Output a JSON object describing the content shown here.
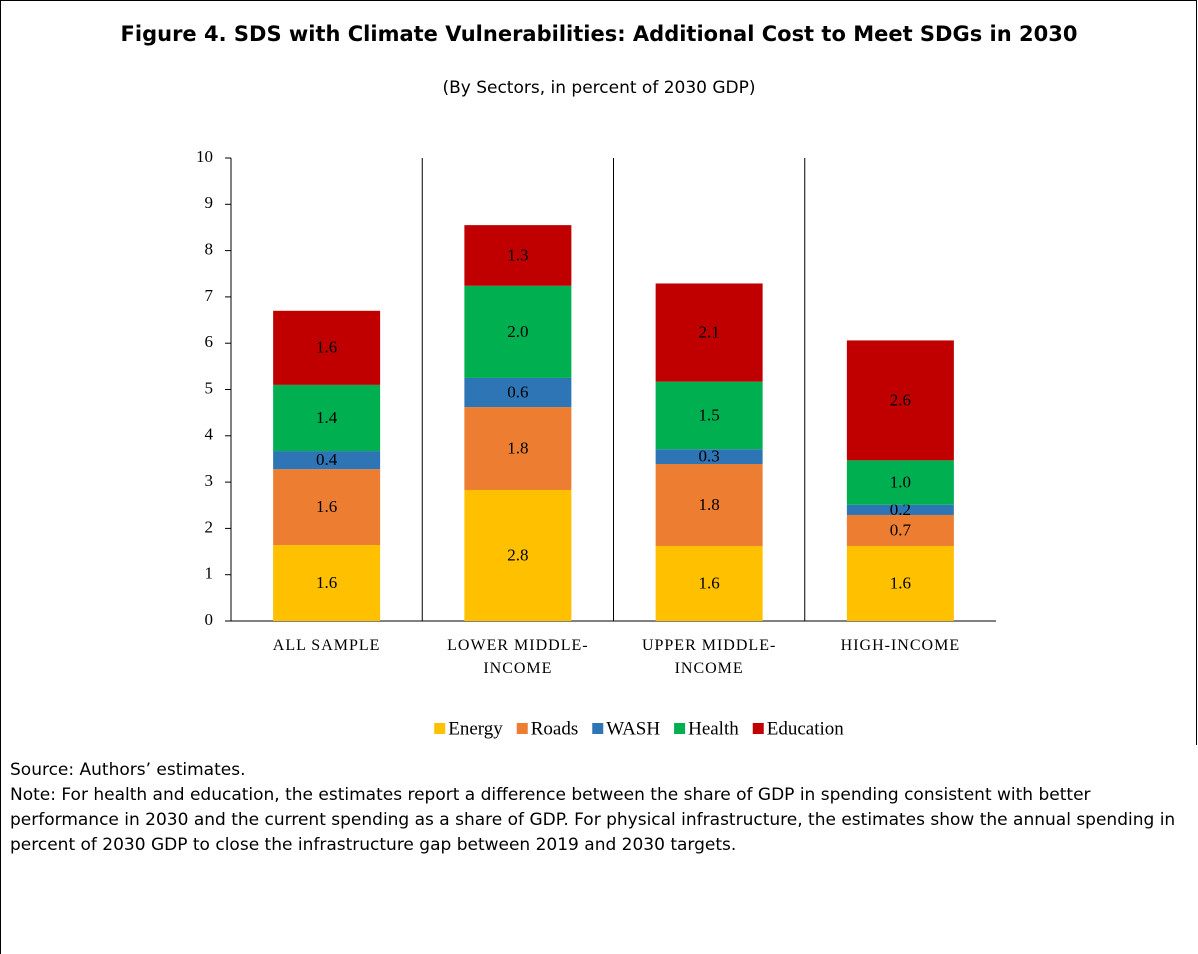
{
  "chart_data": {
    "type": "stacked_bar",
    "title": "Figure 4. SDS with Climate Vulnerabilities: Additional Cost to Meet SDGs in 2030",
    "subtitle": "(By Sectors, in percent of 2030 GDP)",
    "categories": [
      "ALL SAMPLE",
      "LOWER MIDDLE-INCOME",
      "UPPER MIDDLE-INCOME",
      "HIGH-INCOME"
    ],
    "series": [
      {
        "name": "Energy",
        "color": "#FFC000",
        "values": [
          1.64,
          2.83,
          1.62,
          1.62
        ],
        "value_labels": [
          "1.6",
          "2.8",
          "1.6",
          "1.6"
        ]
      },
      {
        "name": "Roads",
        "color": "#ED7D31",
        "values": [
          1.64,
          1.79,
          1.77,
          0.67
        ],
        "value_labels": [
          "1.6",
          "1.8",
          "1.8",
          "0.7"
        ]
      },
      {
        "name": "WASH",
        "color": "#2E75B6",
        "values": [
          0.39,
          0.63,
          0.32,
          0.22
        ],
        "value_labels": [
          "0.4",
          "0.6",
          "0.3",
          "0.2"
        ]
      },
      {
        "name": "Health",
        "color": "#00B050",
        "values": [
          1.43,
          1.99,
          1.46,
          0.96
        ],
        "value_labels": [
          "1.4",
          "2.0",
          "1.5",
          "1.0"
        ]
      },
      {
        "name": "Education",
        "color": "#C00000",
        "values": [
          1.6,
          1.31,
          2.12,
          2.59
        ],
        "value_labels": [
          "1.6",
          "1.3",
          "2.1",
          "2.6"
        ]
      }
    ],
    "ylim": [
      0,
      10
    ],
    "yticks": [
      0,
      1,
      2,
      3,
      4,
      5,
      6,
      7,
      8,
      9,
      10
    ],
    "legend": "bottom",
    "source": "Source: Authors’ estimates.",
    "note": "Note: For health and education, the estimates report a difference between the share of GDP in spending consistent with better performance in 2030 and the current spending as a share of GDP. For physical infrastructure, the estimates show the annual spending in percent of 2030 GDP to close the infrastructure gap between 2019 and 2030 targets."
  }
}
